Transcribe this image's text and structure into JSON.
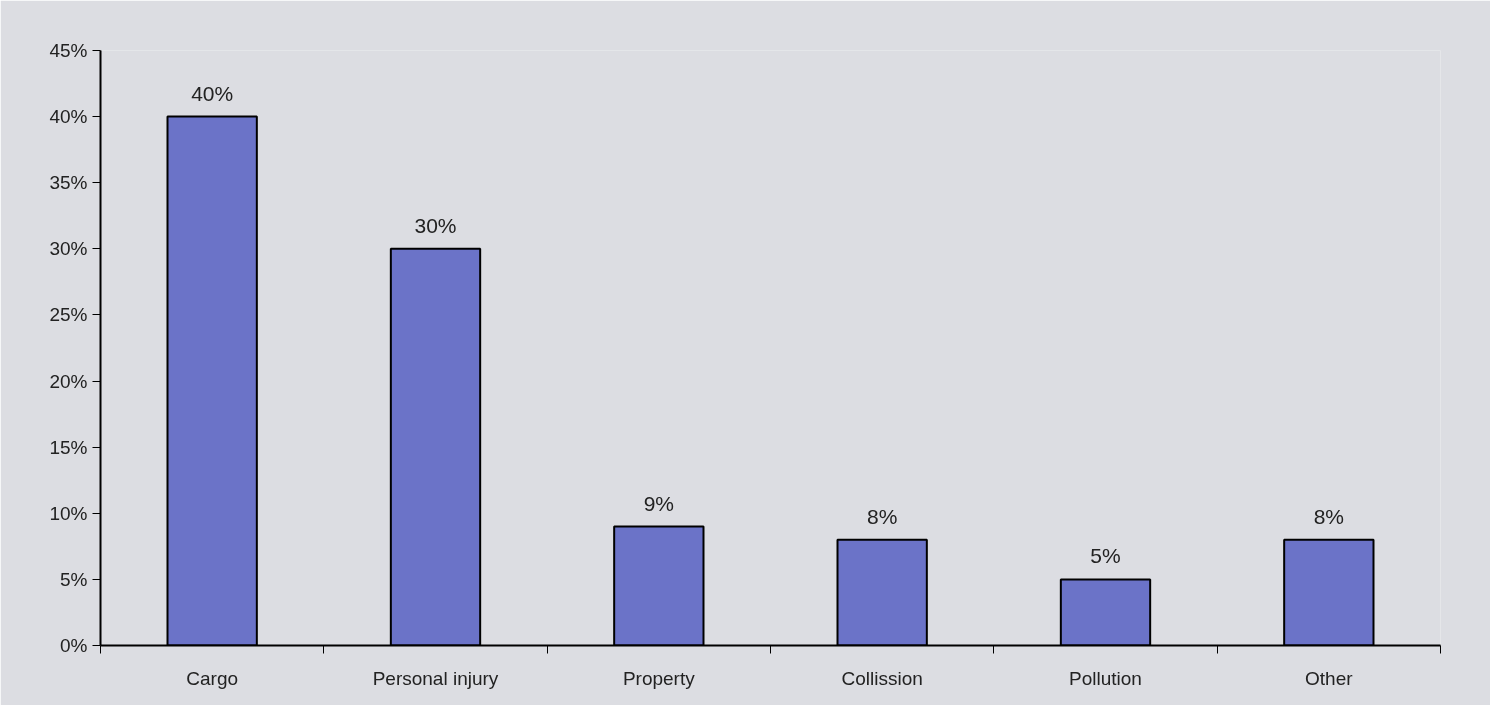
{
  "chart_data": {
    "type": "bar",
    "categories": [
      "Cargo",
      "Personal injury",
      "Property",
      "Collission",
      "Pollution",
      "Other"
    ],
    "values": [
      40,
      30,
      9,
      8,
      5,
      8
    ],
    "value_labels": [
      "40%",
      "30%",
      "9%",
      "8%",
      "5%",
      "8%"
    ],
    "color": "#6b73c8",
    "ylim": [
      0,
      45
    ],
    "yticks": [
      {
        "value": 0,
        "label": "0%"
      },
      {
        "value": 5,
        "label": "5%"
      },
      {
        "value": 10,
        "label": "10%"
      },
      {
        "value": 15,
        "label": "15%"
      },
      {
        "value": 20,
        "label": "20%"
      },
      {
        "value": 25,
        "label": "25%"
      },
      {
        "value": 30,
        "label": "30%"
      },
      {
        "value": 35,
        "label": "35%"
      },
      {
        "value": 40,
        "label": "40%"
      },
      {
        "value": 45,
        "label": "45%"
      }
    ],
    "grid": false
  }
}
